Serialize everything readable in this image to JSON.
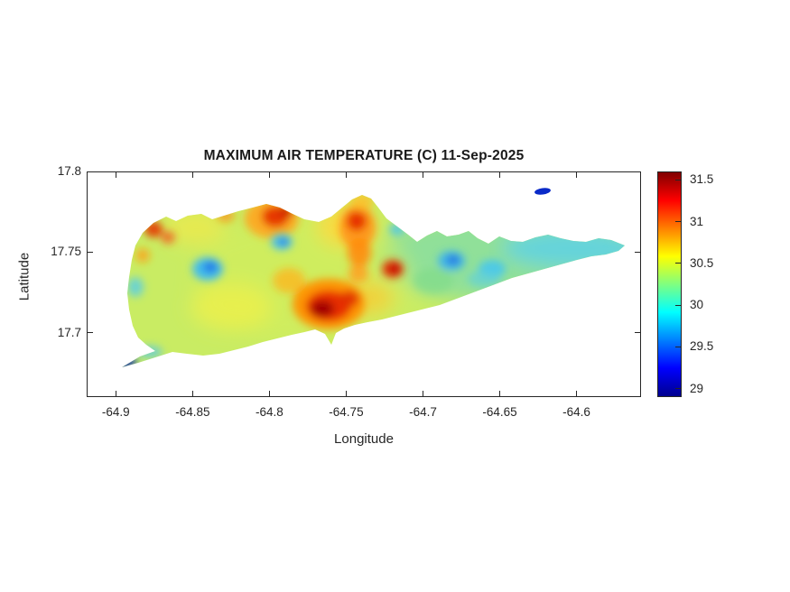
{
  "figure": {
    "title": "MAXIMUM AIR TEMPERATURE (C) 11-Sep-2025",
    "xlabel": "Longitude",
    "ylabel": "Latitude"
  },
  "chart_data": {
    "type": "heatmap",
    "title": "MAXIMUM AIR TEMPERATURE (C) 11-Sep-2025",
    "subtitle": "",
    "xlabel": "Longitude",
    "ylabel": "Latitude",
    "units": "C",
    "date": "11-Sep-2025",
    "x_ticks": [
      "-64.9",
      "-64.85",
      "-64.8",
      "-64.75",
      "-64.7",
      "-64.65",
      "-64.6"
    ],
    "y_ticks": [
      "17.8",
      "17.75",
      "17.7"
    ],
    "xlim": [
      -64.919,
      -64.558
    ],
    "ylim": [
      17.66,
      17.8
    ],
    "grid": false,
    "colorbar": {
      "position": "right",
      "ticks": [
        "29",
        "29.5",
        "30",
        "30.5",
        "31",
        "31.5"
      ],
      "range": [
        28.9,
        31.6
      ],
      "colormap": "jet",
      "stops": [
        {
          "pos": 0.0,
          "color": "#00008f"
        },
        {
          "pos": 0.125,
          "color": "#0000ff"
        },
        {
          "pos": 0.375,
          "color": "#00ffff"
        },
        {
          "pos": 0.625,
          "color": "#ffff00"
        },
        {
          "pos": 0.875,
          "color": "#ff0000"
        },
        {
          "pos": 1.0,
          "color": "#800000"
        }
      ]
    },
    "field_summary": {
      "baseline_temp_c": 30.5,
      "hot_spots": [
        {
          "lon": -64.79,
          "lat": 17.715,
          "temp_c": 31.6
        },
        {
          "lon": -64.755,
          "lat": 17.758,
          "temp_c": 31.3
        },
        {
          "lon": -64.8,
          "lat": 17.762,
          "temp_c": 31.4
        },
        {
          "lon": -64.73,
          "lat": 17.745,
          "temp_c": 31.2
        },
        {
          "lon": -64.885,
          "lat": 17.755,
          "temp_c": 31.2
        }
      ],
      "cool_spots": [
        {
          "lon": -64.835,
          "lat": 17.737,
          "temp_c": 29.7
        },
        {
          "lon": -64.7,
          "lat": 17.742,
          "temp_c": 29.8
        },
        {
          "lon": -64.675,
          "lat": 17.737,
          "temp_c": 29.9
        },
        {
          "lon": -64.905,
          "lat": 17.682,
          "temp_c": 29.0
        },
        {
          "lon": -64.62,
          "lat": 17.787,
          "temp_c": 29.1
        }
      ]
    }
  }
}
